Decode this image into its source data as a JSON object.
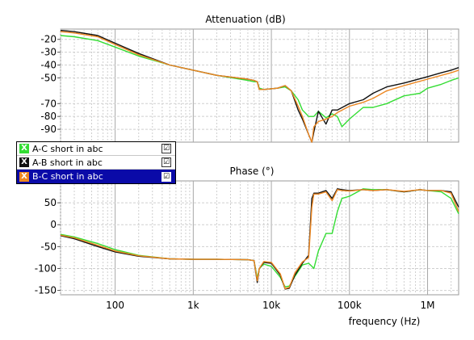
{
  "chart_data": [
    {
      "type": "line",
      "title": "Attenuation (dB)",
      "xlabel": "",
      "ylabel": "",
      "xscale": "log",
      "xlim": [
        20,
        2500000
      ],
      "ylim": [
        -100,
        -12
      ],
      "yticks": [
        -20,
        -30,
        -40,
        -50,
        -70,
        -80,
        -90
      ],
      "grid": true,
      "series": [
        {
          "name": "A-C short in abc",
          "color": "#33dd33",
          "x": [
            20,
            30,
            60,
            100,
            200,
            500,
            1000,
            2000,
            5000,
            6000,
            6600,
            7000,
            8000,
            12000,
            15000,
            18000,
            22000,
            25000,
            30000,
            35000,
            40000,
            50000,
            60000,
            70000,
            80000,
            100000,
            150000,
            200000,
            300000,
            500000,
            800000,
            1000000,
            1500000,
            2000000,
            2500000
          ],
          "y": [
            -17,
            -18,
            -21,
            -26,
            -33,
            -40,
            -44,
            -48,
            -52,
            -53,
            -53,
            -58,
            -59,
            -58,
            -57,
            -60,
            -67,
            -75,
            -80,
            -80,
            -76,
            -81,
            -78,
            -80,
            -88,
            -82,
            -73,
            -73,
            -70,
            -64,
            -62,
            -58,
            -55,
            -52,
            -50
          ]
        },
        {
          "name": "A-B short in abc",
          "color": "#111111",
          "x": [
            20,
            30,
            60,
            100,
            200,
            500,
            1000,
            2000,
            5000,
            6000,
            6600,
            7000,
            8000,
            12000,
            15000,
            18000,
            22000,
            25000,
            30000,
            33000,
            35000,
            40000,
            50000,
            60000,
            70000,
            100000,
            150000,
            200000,
            300000,
            500000,
            1000000,
            1500000,
            2000000,
            2500000
          ],
          "y": [
            -13,
            -14,
            -17,
            -23,
            -31,
            -40,
            -44,
            -48,
            -51,
            -52,
            -53,
            -59,
            -59,
            -58,
            -56,
            -60,
            -75,
            -82,
            -94,
            -100,
            -92,
            -76,
            -86,
            -75,
            -75,
            -70,
            -67,
            -62,
            -57,
            -54,
            -49,
            -46,
            -44,
            -42
          ]
        },
        {
          "name": "B-C short in abc",
          "color": "#ee8822",
          "x": [
            20,
            30,
            60,
            100,
            200,
            500,
            1000,
            2000,
            5000,
            6000,
            6600,
            7000,
            8000,
            12000,
            15000,
            18000,
            22000,
            25000,
            30000,
            33000,
            35000,
            40000,
            50000,
            60000,
            70000,
            100000,
            150000,
            200000,
            300000,
            500000,
            1000000,
            1500000,
            2000000,
            2500000
          ],
          "y": [
            -14,
            -15,
            -18,
            -24,
            -32,
            -40,
            -44,
            -48,
            -51,
            -52,
            -53,
            -59,
            -59,
            -58,
            -56,
            -60,
            -72,
            -80,
            -94,
            -100,
            -88,
            -84,
            -82,
            -80,
            -77,
            -72,
            -69,
            -66,
            -60,
            -56,
            -51,
            -48,
            -46,
            -44
          ]
        }
      ]
    },
    {
      "type": "line",
      "title": "Phase (°)",
      "xlabel": "frequency (Hz)",
      "ylabel": "",
      "xscale": "log",
      "xlim": [
        20,
        2500000
      ],
      "ylim": [
        -160,
        100
      ],
      "yticks": [
        50,
        0,
        -50,
        -100,
        -150
      ],
      "xticks": [
        "100",
        "1k",
        "10k",
        "100k",
        "1M"
      ],
      "grid": true,
      "series": [
        {
          "name": "A-C short in abc",
          "color": "#33dd33",
          "x": [
            20,
            30,
            60,
            100,
            200,
            500,
            1000,
            2000,
            5000,
            6000,
            6600,
            7000,
            8000,
            10000,
            13000,
            15000,
            17000,
            20000,
            25000,
            30000,
            33000,
            35000,
            40000,
            50000,
            60000,
            70000,
            80000,
            100000,
            150000,
            200000,
            300000,
            500000,
            800000,
            1000000,
            1500000,
            2000000,
            2500000
          ],
          "y": [
            -22,
            -28,
            -43,
            -57,
            -70,
            -78,
            -79,
            -79,
            -80,
            -82,
            -122,
            -100,
            -90,
            -95,
            -120,
            -142,
            -140,
            -118,
            -92,
            -88,
            -95,
            -100,
            -60,
            -20,
            -20,
            30,
            60,
            65,
            82,
            80,
            80,
            75,
            80,
            78,
            75,
            60,
            25
          ]
        },
        {
          "name": "A-B short in abc",
          "color": "#111111",
          "x": [
            20,
            30,
            60,
            100,
            200,
            500,
            1000,
            2000,
            5000,
            6000,
            6600,
            7000,
            8000,
            10000,
            13000,
            15000,
            17000,
            20000,
            25000,
            30000,
            33000,
            35000,
            40000,
            50000,
            60000,
            70000,
            80000,
            100000,
            150000,
            200000,
            300000,
            500000,
            800000,
            1000000,
            1500000,
            2000000,
            2500000
          ],
          "y": [
            -25,
            -32,
            -50,
            -62,
            -72,
            -78,
            -79,
            -79,
            -80,
            -82,
            -132,
            -100,
            -86,
            -88,
            -115,
            -147,
            -145,
            -115,
            -88,
            -70,
            60,
            72,
            72,
            78,
            60,
            82,
            80,
            78,
            80,
            78,
            80,
            75,
            80,
            78,
            78,
            75,
            40
          ]
        },
        {
          "name": "B-C short in abc",
          "color": "#ee8822",
          "x": [
            20,
            30,
            60,
            100,
            200,
            500,
            1000,
            2000,
            5000,
            6000,
            6600,
            7000,
            8000,
            10000,
            13000,
            15000,
            17000,
            20000,
            25000,
            30000,
            33000,
            35000,
            40000,
            50000,
            60000,
            70000,
            80000,
            100000,
            150000,
            200000,
            300000,
            500000,
            800000,
            1000000,
            1500000,
            2000000,
            2500000
          ],
          "y": [
            -24,
            -30,
            -47,
            -60,
            -71,
            -78,
            -79,
            -79,
            -80,
            -82,
            -128,
            -100,
            -84,
            -86,
            -112,
            -146,
            -143,
            -110,
            -85,
            -75,
            40,
            70,
            70,
            75,
            55,
            80,
            78,
            77,
            80,
            78,
            80,
            76,
            80,
            78,
            78,
            72,
            30
          ]
        }
      ]
    }
  ],
  "legend": {
    "items": [
      {
        "label": "A-C short in abc",
        "color": "#33dd33",
        "mark": "X",
        "check": "☑",
        "selected": false
      },
      {
        "label": "A-B short in abc",
        "color": "#111111",
        "mark": "X",
        "check": "☑",
        "selected": false
      },
      {
        "label": "B-C short in abc",
        "color": "#ee8822",
        "mark": "X",
        "check": "☑",
        "selected": true
      }
    ]
  }
}
